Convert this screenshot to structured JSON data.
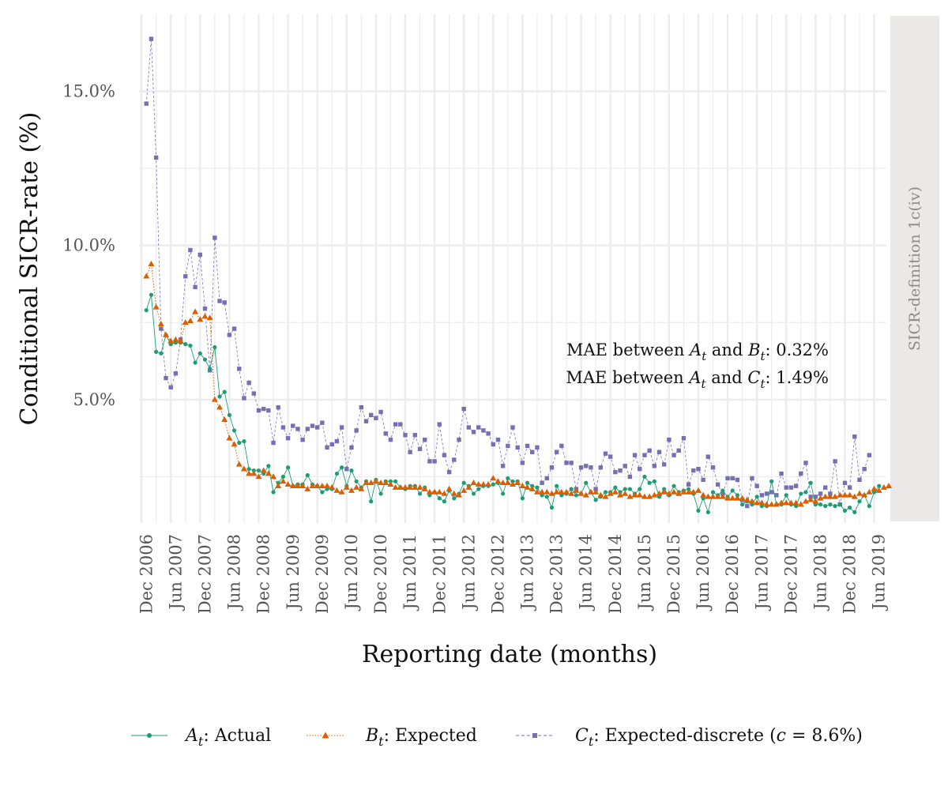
{
  "chart_data": {
    "type": "line",
    "xlabel": "Reporting date (months)",
    "ylabel": "Conditional SICR-rate (%)",
    "facet_label": "SICR-definition 1c(iv)",
    "x_start": "2006-11",
    "x_tick_labels": [
      "Dec 2006",
      "Jun 2007",
      "Dec 2007",
      "Jun 2008",
      "Dec 2008",
      "Jun 2009",
      "Dec 2009",
      "Jun 2010",
      "Dec 2010",
      "Jun 2011",
      "Dec 2011",
      "Jun 2012",
      "Dec 2012",
      "Jun 2013",
      "Dec 2013",
      "Jun 2014",
      "Dec 2014",
      "Jun 2015",
      "Dec 2015",
      "Jun 2016",
      "Dec 2016",
      "Jun 2017",
      "Dec 2017",
      "Jun 2018",
      "Dec 2018",
      "Jun 2019"
    ],
    "y_ticks": [
      5,
      10,
      15
    ],
    "y_tick_labels": [
      "5.0%",
      "10.0%",
      "15.0%"
    ],
    "ylim": [
      1.0,
      17.5
    ],
    "annotations": [
      {
        "prefix": "MAE between ",
        "a": "A",
        "mid": " and ",
        "b": "B",
        "suffix": ": 0.32%"
      },
      {
        "prefix": "MAE between ",
        "a": "A",
        "mid": " and ",
        "b": "C",
        "suffix": ": 1.49%"
      }
    ],
    "series": [
      {
        "name": "Actual",
        "symbol": "A",
        "sub": "t",
        "label_suffix": ": Actual",
        "color": "#1b9e77",
        "marker": "circle",
        "values": [
          7.9,
          8.4,
          6.55,
          6.5,
          7.1,
          6.8,
          6.85,
          6.85,
          6.8,
          6.75,
          6.2,
          6.5,
          6.3,
          6.0,
          6.7,
          5.1,
          5.25,
          4.5,
          4.0,
          3.6,
          3.65,
          2.75,
          2.7,
          2.7,
          2.6,
          2.85,
          2.0,
          2.3,
          2.5,
          2.8,
          2.2,
          2.25,
          2.25,
          2.55,
          2.25,
          2.2,
          2.0,
          2.1,
          2.1,
          2.6,
          2.8,
          2.2,
          2.7,
          2.35,
          2.15,
          2.35,
          1.7,
          2.4,
          1.95,
          2.35,
          2.35,
          2.35,
          2.15,
          2.1,
          2.2,
          2.2,
          1.95,
          2.15,
          1.9,
          2.0,
          1.8,
          1.7,
          2.05,
          1.8,
          1.95,
          2.3,
          2.2,
          1.95,
          2.1,
          2.2,
          2.2,
          2.25,
          2.3,
          1.95,
          2.45,
          2.35,
          2.35,
          1.8,
          2.3,
          2.2,
          2.15,
          1.9,
          1.85,
          1.5,
          2.2,
          1.9,
          1.95,
          2.1,
          1.9,
          1.95,
          2.3,
          2.0,
          1.75,
          1.85,
          2.0,
          2.0,
          2.15,
          2.0,
          2.1,
          2.1,
          1.95,
          2.1,
          2.5,
          2.3,
          2.35,
          1.85,
          2.1,
          1.9,
          2.2,
          2.0,
          2.05,
          2.1,
          1.95,
          1.4,
          1.8,
          1.35,
          2.0,
          1.9,
          2.05,
          1.85,
          2.05,
          1.9,
          1.6,
          1.7,
          1.6,
          1.85,
          1.55,
          1.55,
          2.35,
          1.6,
          1.6,
          1.9,
          1.6,
          1.55,
          1.95,
          2.0,
          2.3,
          1.6,
          1.6,
          1.55,
          1.6,
          1.55,
          1.6,
          1.4,
          1.5,
          1.35,
          1.7,
          1.9,
          1.55,
          2.0,
          2.2
        ]
      },
      {
        "name": "Expected",
        "symbol": "B",
        "sub": "t",
        "label_suffix": ": Expected",
        "color": "#d95f02",
        "marker": "triangle",
        "values": [
          9.0,
          9.4,
          8.0,
          7.45,
          7.1,
          6.9,
          6.95,
          6.9,
          7.5,
          7.55,
          7.85,
          7.6,
          7.7,
          7.65,
          5.0,
          4.75,
          4.35,
          3.75,
          3.55,
          2.9,
          2.75,
          2.6,
          2.6,
          2.5,
          2.7,
          2.6,
          2.5,
          2.2,
          2.35,
          2.25,
          2.2,
          2.2,
          2.2,
          2.1,
          2.2,
          2.2,
          2.2,
          2.2,
          2.15,
          2.05,
          2.0,
          2.15,
          2.05,
          2.15,
          2.1,
          2.3,
          2.3,
          2.35,
          2.3,
          2.3,
          2.25,
          2.15,
          2.15,
          2.15,
          2.15,
          2.15,
          2.15,
          2.1,
          2.0,
          2.0,
          2.0,
          1.95,
          2.1,
          1.95,
          1.9,
          2.05,
          2.15,
          2.3,
          2.25,
          2.25,
          2.25,
          2.45,
          2.35,
          2.3,
          2.3,
          2.25,
          2.3,
          2.2,
          2.15,
          2.1,
          2.0,
          2.0,
          2.0,
          1.95,
          2.0,
          2.0,
          2.0,
          1.95,
          2.05,
          1.95,
          1.9,
          2.0,
          2.0,
          1.9,
          1.85,
          1.95,
          2.0,
          1.9,
          1.95,
          1.85,
          1.9,
          1.9,
          1.85,
          1.85,
          1.9,
          1.95,
          2.0,
          1.95,
          2.0,
          1.95,
          2.0,
          2.0,
          2.0,
          2.05,
          1.9,
          1.85,
          1.85,
          1.85,
          1.85,
          1.8,
          1.8,
          1.8,
          1.8,
          1.75,
          1.7,
          1.65,
          1.65,
          1.6,
          1.6,
          1.6,
          1.65,
          1.65,
          1.65,
          1.65,
          1.6,
          1.7,
          1.75,
          1.7,
          1.8,
          1.85,
          1.85,
          1.85,
          1.9,
          1.9,
          1.9,
          1.85,
          1.95,
          1.9,
          2.0,
          2.1,
          2.05,
          2.15,
          2.2
        ]
      },
      {
        "name": "Expected-discrete",
        "symbol": "C",
        "sub": "t",
        "label_suffix": ": Expected-discrete (",
        "label_c": "c",
        "label_tail": " = 8.6%)",
        "color": "#7570b3",
        "marker": "square",
        "values": [
          14.6,
          16.7,
          12.85,
          7.3,
          5.7,
          5.4,
          5.85,
          6.95,
          9.0,
          9.85,
          8.65,
          9.7,
          7.95,
          5.95,
          10.25,
          8.2,
          8.15,
          7.1,
          7.3,
          6.0,
          5.05,
          5.55,
          5.2,
          4.65,
          4.7,
          4.65,
          3.6,
          4.75,
          4.1,
          3.75,
          4.15,
          4.05,
          3.7,
          4.05,
          4.15,
          4.1,
          4.25,
          3.45,
          3.55,
          3.65,
          4.1,
          2.75,
          3.45,
          4.0,
          4.75,
          4.3,
          4.5,
          4.4,
          4.6,
          3.9,
          3.7,
          4.2,
          4.2,
          3.85,
          3.3,
          3.85,
          3.4,
          3.7,
          3.0,
          3.0,
          4.2,
          3.2,
          2.65,
          3.05,
          3.7,
          4.7,
          4.1,
          3.95,
          4.1,
          4.0,
          3.9,
          3.55,
          3.7,
          2.85,
          3.5,
          4.1,
          3.45,
          2.95,
          3.5,
          3.3,
          3.45,
          2.3,
          2.45,
          2.8,
          3.3,
          3.5,
          2.95,
          2.95,
          2.1,
          2.8,
          2.85,
          2.8,
          2.1,
          2.8,
          3.25,
          3.15,
          2.65,
          2.7,
          2.85,
          2.5,
          3.2,
          2.75,
          3.2,
          3.35,
          2.85,
          3.3,
          2.9,
          3.7,
          3.2,
          3.35,
          3.75,
          2.25,
          2.7,
          2.75,
          2.4,
          3.15,
          2.8,
          2.25,
          1.95,
          2.45,
          2.45,
          2.4,
          1.75,
          1.55,
          2.45,
          2.2,
          1.9,
          1.95,
          2.0,
          1.9,
          2.6,
          2.15,
          2.15,
          2.2,
          2.6,
          2.95,
          1.85,
          1.85,
          1.95,
          2.15,
          1.95,
          3.0,
          1.6,
          2.3,
          2.15,
          3.8,
          2.4,
          2.75,
          3.2
        ]
      }
    ]
  }
}
